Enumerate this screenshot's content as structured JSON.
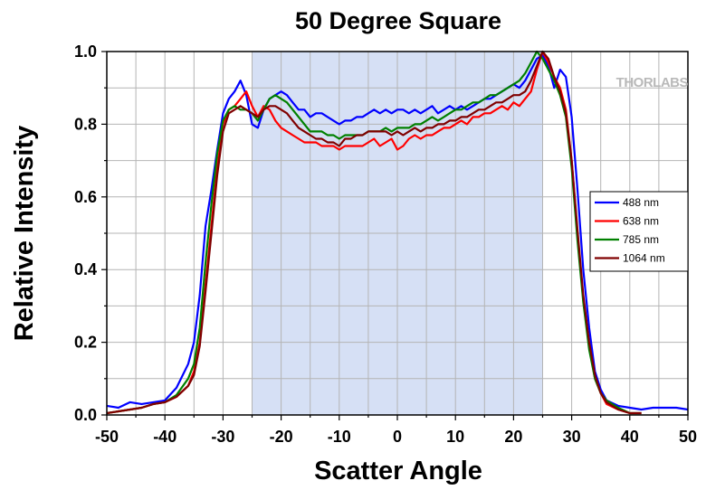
{
  "chart_data": {
    "type": "line",
    "title": "50 Degree Square",
    "xlabel": "Scatter Angle",
    "ylabel": "Relative Intensity",
    "xlim": [
      -50,
      50
    ],
    "ylim": [
      0,
      1.0
    ],
    "xticks": [
      "-50",
      "-40",
      "-30",
      "-20",
      "-10",
      "0",
      "10",
      "20",
      "30",
      "40",
      "50"
    ],
    "yticks": [
      "0.0",
      "0.2",
      "0.4",
      "0.6",
      "0.8",
      "1.0"
    ],
    "grid": true,
    "legend_position": "right",
    "highlight_region": [
      -25,
      25
    ],
    "highlight_color": "#d6e0f5",
    "watermark": "THORLABS",
    "series": [
      {
        "name": "488 nm",
        "color": "#0000ff",
        "x": [
          -50,
          -48,
          -46,
          -44,
          -42,
          -40,
          -38,
          -36,
          -35,
          -34,
          -33,
          -32,
          -31,
          -30,
          -29,
          -28,
          -27,
          -26,
          -25,
          -24,
          -23,
          -22,
          -21,
          -20,
          -19,
          -18,
          -17,
          -16,
          -15,
          -14,
          -13,
          -12,
          -11,
          -10,
          -9,
          -8,
          -7,
          -6,
          -5,
          -4,
          -3,
          -2,
          -1,
          0,
          1,
          2,
          3,
          4,
          5,
          6,
          7,
          8,
          9,
          10,
          11,
          12,
          13,
          14,
          15,
          16,
          17,
          18,
          19,
          20,
          21,
          22,
          23,
          24,
          25,
          26,
          27,
          28,
          29,
          30,
          31,
          32,
          33,
          34,
          35,
          36,
          38,
          40,
          42,
          44,
          46,
          48,
          50
        ],
        "y": [
          0.025,
          0.02,
          0.035,
          0.03,
          0.035,
          0.04,
          0.075,
          0.14,
          0.2,
          0.33,
          0.52,
          0.62,
          0.73,
          0.83,
          0.87,
          0.89,
          0.92,
          0.88,
          0.8,
          0.79,
          0.84,
          0.87,
          0.88,
          0.89,
          0.88,
          0.86,
          0.84,
          0.84,
          0.82,
          0.83,
          0.83,
          0.82,
          0.81,
          0.8,
          0.81,
          0.81,
          0.82,
          0.82,
          0.83,
          0.84,
          0.83,
          0.84,
          0.83,
          0.84,
          0.84,
          0.83,
          0.84,
          0.83,
          0.84,
          0.85,
          0.83,
          0.84,
          0.85,
          0.84,
          0.85,
          0.84,
          0.85,
          0.86,
          0.87,
          0.87,
          0.88,
          0.89,
          0.9,
          0.91,
          0.9,
          0.92,
          0.95,
          0.98,
          0.99,
          0.96,
          0.9,
          0.95,
          0.93,
          0.82,
          0.62,
          0.4,
          0.24,
          0.12,
          0.07,
          0.04,
          0.025,
          0.02,
          0.015,
          0.02,
          0.02,
          0.02,
          0.015
        ]
      },
      {
        "name": "638 nm",
        "color": "#ff0000",
        "x": [
          -50,
          -48,
          -46,
          -44,
          -42,
          -40,
          -38,
          -36,
          -35,
          -34,
          -33,
          -32,
          -31,
          -30,
          -29,
          -28,
          -27,
          -26,
          -25,
          -24,
          -23,
          -22,
          -21,
          -20,
          -19,
          -18,
          -17,
          -16,
          -15,
          -14,
          -13,
          -12,
          -11,
          -10,
          -9,
          -8,
          -7,
          -6,
          -5,
          -4,
          -3,
          -2,
          -1,
          0,
          1,
          2,
          3,
          4,
          5,
          6,
          7,
          8,
          9,
          10,
          11,
          12,
          13,
          14,
          15,
          16,
          17,
          18,
          19,
          20,
          21,
          22,
          23,
          24,
          25,
          26,
          27,
          28,
          29,
          30,
          31,
          32,
          33,
          34,
          35,
          36,
          38,
          40,
          42
        ],
        "y": [
          0.005,
          0.01,
          0.015,
          0.02,
          0.03,
          0.035,
          0.05,
          0.08,
          0.12,
          0.2,
          0.36,
          0.52,
          0.68,
          0.8,
          0.84,
          0.85,
          0.87,
          0.89,
          0.85,
          0.82,
          0.85,
          0.84,
          0.81,
          0.79,
          0.78,
          0.77,
          0.76,
          0.75,
          0.75,
          0.75,
          0.74,
          0.74,
          0.74,
          0.73,
          0.74,
          0.74,
          0.74,
          0.74,
          0.75,
          0.76,
          0.74,
          0.75,
          0.76,
          0.73,
          0.74,
          0.76,
          0.77,
          0.76,
          0.77,
          0.77,
          0.78,
          0.79,
          0.79,
          0.8,
          0.81,
          0.8,
          0.82,
          0.82,
          0.83,
          0.83,
          0.84,
          0.85,
          0.84,
          0.86,
          0.85,
          0.87,
          0.89,
          0.95,
          1.0,
          0.97,
          0.93,
          0.9,
          0.84,
          0.7,
          0.5,
          0.32,
          0.19,
          0.1,
          0.06,
          0.03,
          0.015,
          0.005,
          0.005
        ]
      },
      {
        "name": "785 nm",
        "color": "#008000",
        "x": [
          -50,
          -48,
          -46,
          -44,
          -42,
          -40,
          -38,
          -36,
          -35,
          -34,
          -33,
          -32,
          -31,
          -30,
          -29,
          -28,
          -27,
          -26,
          -25,
          -24,
          -23,
          -22,
          -21,
          -20,
          -19,
          -18,
          -17,
          -16,
          -15,
          -14,
          -13,
          -12,
          -11,
          -10,
          -9,
          -8,
          -7,
          -6,
          -5,
          -4,
          -3,
          -2,
          -1,
          0,
          1,
          2,
          3,
          4,
          5,
          6,
          7,
          8,
          9,
          10,
          11,
          12,
          13,
          14,
          15,
          16,
          17,
          18,
          19,
          20,
          21,
          22,
          23,
          24,
          25,
          26,
          27,
          28,
          29,
          30,
          31,
          32,
          33,
          34,
          35,
          36,
          38,
          40,
          42
        ],
        "y": [
          0.005,
          0.01,
          0.015,
          0.02,
          0.03,
          0.035,
          0.055,
          0.1,
          0.14,
          0.24,
          0.42,
          0.58,
          0.72,
          0.81,
          0.84,
          0.85,
          0.84,
          0.84,
          0.83,
          0.81,
          0.84,
          0.87,
          0.88,
          0.87,
          0.86,
          0.84,
          0.82,
          0.8,
          0.78,
          0.78,
          0.78,
          0.77,
          0.77,
          0.76,
          0.77,
          0.77,
          0.77,
          0.77,
          0.78,
          0.78,
          0.78,
          0.79,
          0.78,
          0.79,
          0.79,
          0.79,
          0.8,
          0.8,
          0.81,
          0.82,
          0.81,
          0.82,
          0.83,
          0.84,
          0.84,
          0.85,
          0.86,
          0.86,
          0.87,
          0.88,
          0.88,
          0.89,
          0.9,
          0.91,
          0.92,
          0.94,
          0.97,
          1.0,
          0.98,
          0.95,
          0.92,
          0.88,
          0.82,
          0.68,
          0.48,
          0.31,
          0.18,
          0.1,
          0.06,
          0.04,
          0.02,
          0.005,
          0.005
        ]
      },
      {
        "name": "1064 nm",
        "color": "#800000",
        "x": [
          -50,
          -48,
          -46,
          -44,
          -42,
          -40,
          -38,
          -36,
          -35,
          -34,
          -33,
          -32,
          -31,
          -30,
          -29,
          -28,
          -27,
          -26,
          -25,
          -24,
          -23,
          -22,
          -21,
          -20,
          -19,
          -18,
          -17,
          -16,
          -15,
          -14,
          -13,
          -12,
          -11,
          -10,
          -9,
          -8,
          -7,
          -6,
          -5,
          -4,
          -3,
          -2,
          -1,
          0,
          1,
          2,
          3,
          4,
          5,
          6,
          7,
          8,
          9,
          10,
          11,
          12,
          13,
          14,
          15,
          16,
          17,
          18,
          19,
          20,
          21,
          22,
          23,
          24,
          25,
          26,
          27,
          28,
          29,
          30,
          31,
          32,
          33,
          34,
          35,
          36,
          38,
          40,
          42
        ],
        "y": [
          0.005,
          0.01,
          0.015,
          0.02,
          0.03,
          0.035,
          0.05,
          0.08,
          0.11,
          0.19,
          0.34,
          0.5,
          0.66,
          0.78,
          0.83,
          0.84,
          0.85,
          0.84,
          0.83,
          0.82,
          0.84,
          0.85,
          0.85,
          0.84,
          0.83,
          0.81,
          0.79,
          0.78,
          0.77,
          0.76,
          0.76,
          0.75,
          0.75,
          0.74,
          0.76,
          0.76,
          0.77,
          0.77,
          0.78,
          0.78,
          0.78,
          0.78,
          0.77,
          0.78,
          0.77,
          0.78,
          0.79,
          0.78,
          0.79,
          0.79,
          0.8,
          0.8,
          0.81,
          0.81,
          0.82,
          0.82,
          0.83,
          0.84,
          0.84,
          0.85,
          0.86,
          0.86,
          0.87,
          0.88,
          0.88,
          0.89,
          0.92,
          0.96,
          1.0,
          0.98,
          0.93,
          0.89,
          0.83,
          0.7,
          0.51,
          0.33,
          0.2,
          0.11,
          0.06,
          0.035,
          0.015,
          0.005,
          0.005
        ]
      }
    ]
  }
}
